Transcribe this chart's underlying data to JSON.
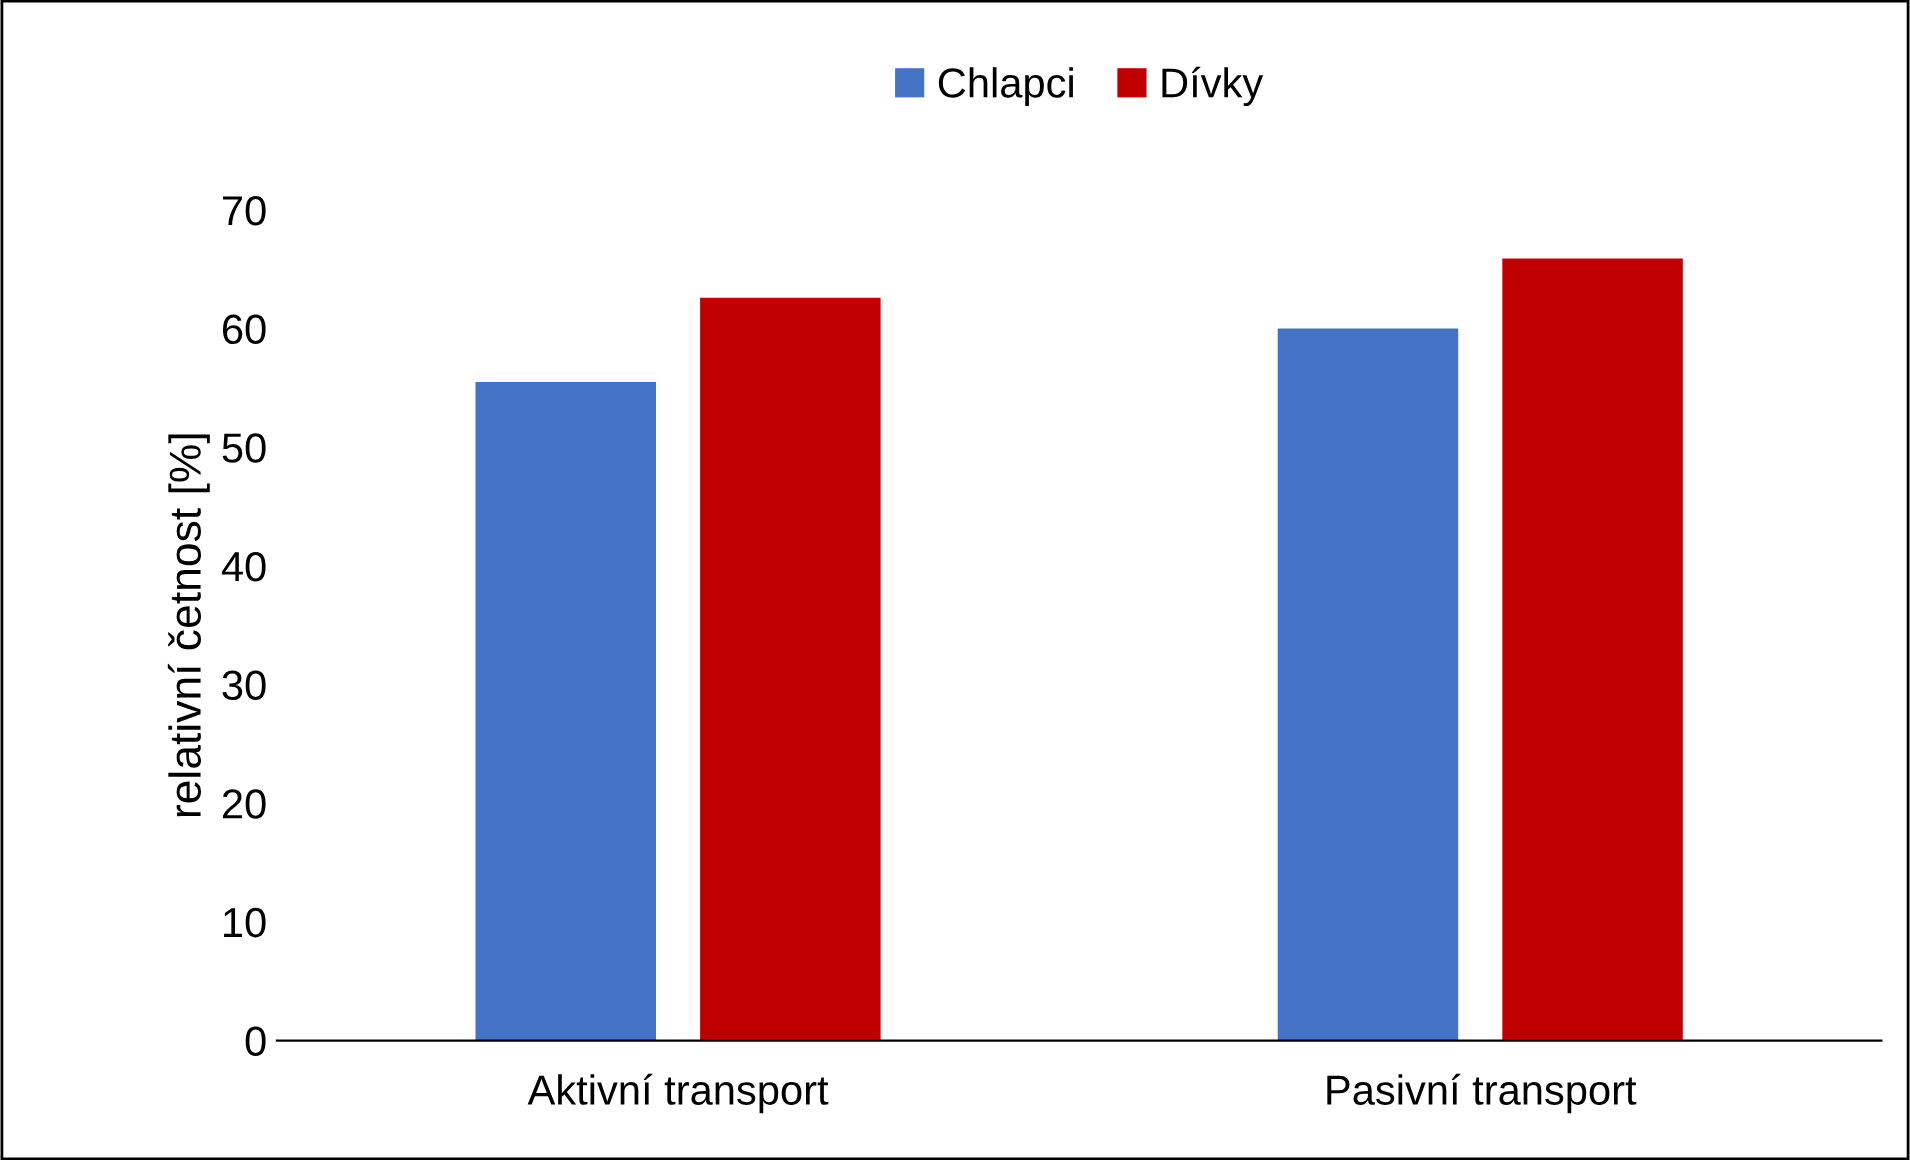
{
  "chart_data": {
    "type": "bar",
    "ylabel": "relativní četnost [%]",
    "categories": [
      "Aktivní transport",
      "Pasivní transport"
    ],
    "series": [
      {
        "name": "Chlapci",
        "color": "#4472c4",
        "values": [
          55.5,
          60.0
        ]
      },
      {
        "name": "Dívky",
        "color": "#c00000",
        "values": [
          62.6,
          65.9
        ]
      }
    ],
    "ylim": [
      0,
      70
    ],
    "yticks": [
      0,
      10,
      20,
      30,
      40,
      50,
      60,
      70
    ],
    "grid": false,
    "legend": "top"
  }
}
